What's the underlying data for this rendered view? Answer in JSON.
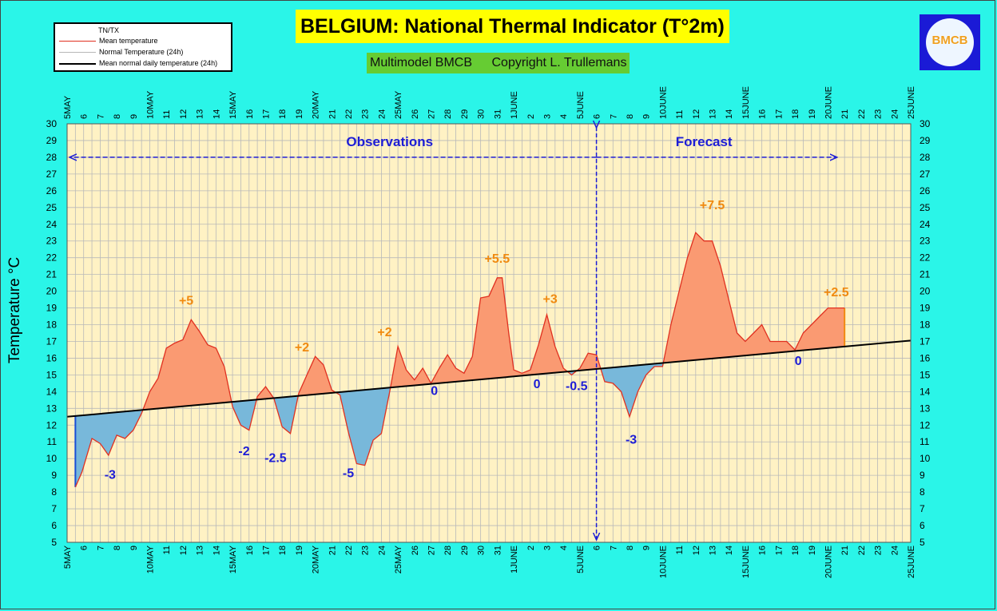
{
  "header": {
    "title": "BELGIUM: National Thermal Indicator (T°2m)",
    "model": "Multimodel BMCB",
    "copyright": "Copyright L. Trullemans"
  },
  "legend": {
    "header": "TN/TX",
    "items": [
      {
        "label": "Mean temperature",
        "color": "#e03020"
      },
      {
        "label": "Normal Temperature (24h)",
        "color": "#b8b8b8"
      },
      {
        "label": "Mean normal daily temperature (24h)",
        "color": "#000000"
      }
    ]
  },
  "logo": {
    "text": "BMCB"
  },
  "colors": {
    "plot_bg": "#fff2c4",
    "grid": "#b9b9b9",
    "above": "#fa9a72",
    "below": "#78b8da",
    "mean_line": "#e03020",
    "normal_line": "#000000",
    "arrow": "#1d1dd6",
    "plus_label": "#f08a10",
    "minus_label": "#1d1dd6"
  },
  "chart_data": {
    "type": "area",
    "ylabel": "Temperature °C",
    "ylim": [
      5,
      30
    ],
    "yticks": [
      5,
      6,
      7,
      8,
      9,
      10,
      11,
      12,
      13,
      14,
      15,
      16,
      17,
      18,
      19,
      20,
      21,
      22,
      23,
      24,
      25,
      26,
      27,
      28,
      29,
      30
    ],
    "x_range": [
      0,
      51
    ],
    "x_ticks": [
      "5MAY",
      "6",
      "7",
      "8",
      "9",
      "10MAY",
      "11",
      "12",
      "13",
      "14",
      "15MAY",
      "16",
      "17",
      "18",
      "19",
      "20MAY",
      "21",
      "22",
      "23",
      "24",
      "25MAY",
      "26",
      "27",
      "28",
      "29",
      "30",
      "31",
      "1JUNE",
      "2",
      "3",
      "4",
      "5JUNE",
      "6",
      "7",
      "8",
      "9",
      "10JUNE",
      "11",
      "12",
      "13",
      "14",
      "15JUNE",
      "16",
      "17",
      "18",
      "19",
      "20JUNE",
      "21",
      "22",
      "23",
      "24",
      "25JUNE"
    ],
    "series": [
      {
        "name": "Mean temperature",
        "x": [
          0.5,
          0.9,
          1.5,
          2.0,
          2.5,
          3.0,
          3.5,
          4.0,
          4.5,
          5.0,
          5.5,
          6.0,
          6.5,
          7.0,
          7.5,
          8.0,
          8.5,
          9.0,
          9.5,
          10.0,
          10.5,
          11.0,
          11.5,
          12.0,
          12.5,
          13.0,
          13.5,
          14.0,
          14.5,
          15.0,
          15.5,
          16.0,
          16.5,
          17.0,
          17.5,
          18.0,
          18.5,
          19.0,
          19.5,
          20.0,
          20.5,
          21.0,
          21.5,
          22.0,
          22.5,
          23.0,
          23.5,
          24.0,
          24.5,
          25.0,
          25.5,
          26.0,
          26.3,
          26.7,
          27.0,
          27.5,
          28.0,
          28.5,
          29.0,
          29.5,
          30.0,
          30.5,
          31.0,
          31.5,
          32.0,
          32.5,
          33.0,
          33.5,
          34.0,
          34.5,
          35.0,
          35.5,
          36.0,
          36.5,
          37.0,
          37.5,
          38.0,
          38.5,
          39.0,
          39.5,
          40.0,
          40.5,
          41.0,
          41.5,
          42.0,
          42.5,
          43.0,
          43.5,
          44.0,
          44.5,
          45.0,
          45.5,
          46.0,
          46.5,
          47.0
        ],
        "values": [
          8.3,
          9.2,
          11.2,
          10.9,
          10.2,
          11.4,
          11.2,
          11.7,
          12.7,
          14.0,
          14.8,
          16.6,
          16.9,
          17.1,
          18.3,
          17.6,
          16.8,
          16.6,
          15.5,
          13.1,
          12.0,
          11.7,
          13.7,
          14.3,
          13.6,
          11.9,
          11.5,
          13.9,
          15.0,
          16.1,
          15.6,
          14.1,
          13.8,
          11.6,
          9.7,
          9.6,
          11.1,
          11.5,
          14.0,
          16.7,
          15.3,
          14.7,
          15.4,
          14.5,
          15.4,
          16.2,
          15.4,
          15.1,
          16.1,
          19.6,
          19.7,
          20.8,
          20.8,
          17.5,
          15.3,
          15.1,
          15.3,
          16.8,
          18.6,
          16.7,
          15.4,
          15.0,
          15.4,
          16.3,
          16.2,
          14.6,
          14.5,
          14.0,
          12.5,
          14.0,
          15.0,
          15.5,
          15.5,
          18.0,
          20.0,
          22.0,
          23.5,
          23.0,
          23.0,
          21.5,
          19.5,
          17.5,
          17.0,
          17.5,
          18.0,
          17.0,
          17.0,
          17.0,
          16.5,
          17.5,
          18.0,
          18.5,
          19.0,
          19.0,
          19.0
        ]
      },
      {
        "name": "Mean normal daily temperature (24h)",
        "x": [
          0,
          51
        ],
        "values": [
          12.5,
          17.05
        ]
      }
    ],
    "regions": [
      {
        "label": "Observations",
        "x_from": 0,
        "x_to": 32
      },
      {
        "label": "Forecast",
        "x_from": 32,
        "x_to": 46.5
      }
    ],
    "forecast_start_x": 32,
    "annotations": [
      {
        "text": "-3",
        "x": 2.6,
        "y": 8.8
      },
      {
        "text": "+5",
        "x": 7.2,
        "y": 19.2
      },
      {
        "text": "-2",
        "x": 10.7,
        "y": 10.2
      },
      {
        "text": "-2.5",
        "x": 12.6,
        "y": 9.8
      },
      {
        "text": "+2",
        "x": 14.2,
        "y": 16.4
      },
      {
        "text": "-5",
        "x": 17.0,
        "y": 8.9
      },
      {
        "text": "+2",
        "x": 19.2,
        "y": 17.3
      },
      {
        "text": "0",
        "x": 22.2,
        "y": 13.8
      },
      {
        "text": "+5.5",
        "x": 26.0,
        "y": 21.7
      },
      {
        "text": "0",
        "x": 28.4,
        "y": 14.2
      },
      {
        "text": "+3",
        "x": 29.2,
        "y": 19.3
      },
      {
        "text": "-0.5",
        "x": 30.8,
        "y": 14.1
      },
      {
        "text": "-3",
        "x": 34.1,
        "y": 10.9
      },
      {
        "text": "+7.5",
        "x": 39.0,
        "y": 24.9
      },
      {
        "text": "0",
        "x": 44.2,
        "y": 15.6
      },
      {
        "text": "+2.5",
        "x": 46.5,
        "y": 19.7
      }
    ]
  }
}
